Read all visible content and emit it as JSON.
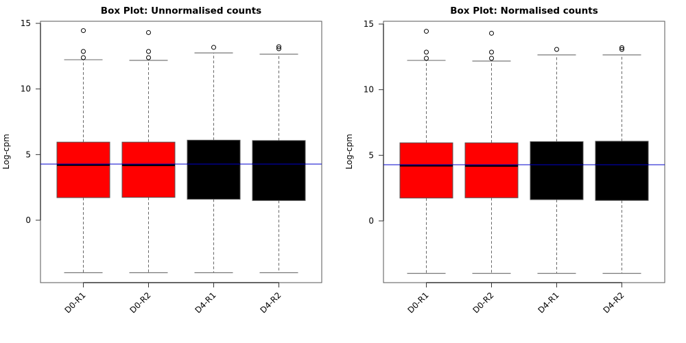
{
  "chart_data": [
    {
      "type": "box",
      "title": "Box Plot: Unnormalised counts",
      "xlabel": "",
      "ylabel": "Log-cpm",
      "ylim": [
        -4.8,
        15.2
      ],
      "yticks": [
        0,
        5,
        10,
        15
      ],
      "categories": [
        "D0-R1",
        "D0-R2",
        "D4-R1",
        "D4-R2"
      ],
      "colors": [
        "#ff0000",
        "#ff0000",
        "#000000",
        "#000000"
      ],
      "reference_line": {
        "value": 4.28,
        "color": "#0000cc"
      },
      "boxes": [
        {
          "whisker_low": -4.0,
          "q1": 1.72,
          "median": 4.22,
          "q3": 5.95,
          "whisker_high": 12.23,
          "outliers": [
            12.39,
            12.86,
            14.45
          ]
        },
        {
          "whisker_low": -4.0,
          "q1": 1.74,
          "median": 4.2,
          "q3": 5.95,
          "whisker_high": 12.18,
          "outliers": [
            12.39,
            12.86,
            14.3
          ]
        },
        {
          "whisker_low": -4.0,
          "q1": 1.6,
          "median": 4.3,
          "q3": 6.1,
          "whisker_high": 12.75,
          "outliers": [
            13.17
          ]
        },
        {
          "whisker_low": -4.0,
          "q1": 1.5,
          "median": 4.3,
          "q3": 6.07,
          "whisker_high": 12.65,
          "outliers": [
            13.07,
            13.22
          ]
        }
      ]
    },
    {
      "type": "box",
      "title": "Box Plot: Normalised counts",
      "xlabel": "",
      "ylabel": "Log-cpm",
      "ylim": [
        -4.8,
        15.2
      ],
      "yticks": [
        0,
        5,
        10,
        15
      ],
      "categories": [
        "D0-R1",
        "D0-R2",
        "D4-R1",
        "D4-R2"
      ],
      "colors": [
        "#ff0000",
        "#ff0000",
        "#000000",
        "#000000"
      ],
      "reference_line": {
        "value": 4.28,
        "color": "#0000cc"
      },
      "boxes": [
        {
          "whisker_low": -4.0,
          "q1": 1.74,
          "median": 4.22,
          "q3": 5.95,
          "whisker_high": 12.23,
          "outliers": [
            12.39,
            12.86,
            14.45
          ]
        },
        {
          "whisker_low": -4.0,
          "q1": 1.76,
          "median": 4.2,
          "q3": 5.95,
          "whisker_high": 12.18,
          "outliers": [
            12.39,
            12.86,
            14.3
          ]
        },
        {
          "whisker_low": -4.0,
          "q1": 1.62,
          "median": 4.3,
          "q3": 6.04,
          "whisker_high": 12.65,
          "outliers": [
            13.07
          ]
        },
        {
          "whisker_low": -4.0,
          "q1": 1.56,
          "median": 4.3,
          "q3": 6.07,
          "whisker_high": 12.65,
          "outliers": [
            13.07,
            13.2
          ]
        }
      ]
    }
  ]
}
